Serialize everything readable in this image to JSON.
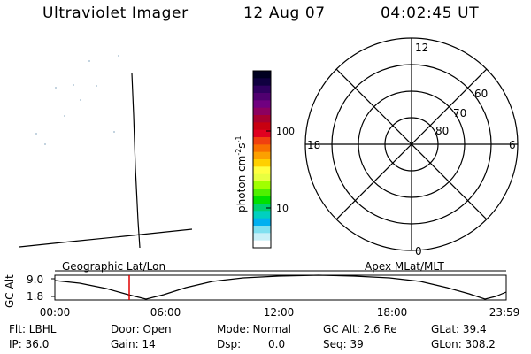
{
  "header": {
    "title": "Ultraviolet Imager",
    "date": "12 Aug 07",
    "time": "04:02:45 UT"
  },
  "colorbar": {
    "unit_label": "photon cm",
    "unit_exp1": "-2",
    "unit_mid": "s",
    "unit_exp2": "-1",
    "ticks": [
      "100",
      "10"
    ],
    "colors": [
      "#000020",
      "#100040",
      "#300060",
      "#500070",
      "#700080",
      "#8c0060",
      "#a80030",
      "#c80010",
      "#e00020",
      "#f04010",
      "#f87000",
      "#fca000",
      "#ffd000",
      "#ffff40",
      "#e8ff40",
      "#a0ff00",
      "#50f000",
      "#00e000",
      "#00d070",
      "#00d0c0",
      "#00b0f0",
      "#80e0f0",
      "#c8f0f8",
      "#ffffff"
    ]
  },
  "polar": {
    "lat_labels": [
      "60",
      "70",
      "80"
    ],
    "mlt_labels": {
      "top": "12",
      "bottom": "0",
      "left": "18",
      "right": "6"
    }
  },
  "footer": {
    "geo_label": "Geographic Lat/Lon",
    "apex_label": "Apex MLat/MLT",
    "axis_label": "GC Alt",
    "y_ticks": [
      "9.0",
      "1.8"
    ],
    "x_ticks": [
      "00:00",
      "06:00",
      "12:00",
      "18:00",
      "23:59"
    ],
    "marker_color": "#e00000"
  },
  "status": {
    "flt": "Flt: LBHL",
    "ip": "IP: 36.0",
    "door": "Door: Open",
    "gain": "Gain: 14",
    "mode": "Mode: Normal",
    "dsp_label": "Dsp:",
    "dsp_value": "0.0",
    "gc_alt": "GC Alt: 2.6 Re",
    "seq": "Seq: 39",
    "glat": "GLat: 39.4",
    "glon": "GLon: 308.2"
  }
}
